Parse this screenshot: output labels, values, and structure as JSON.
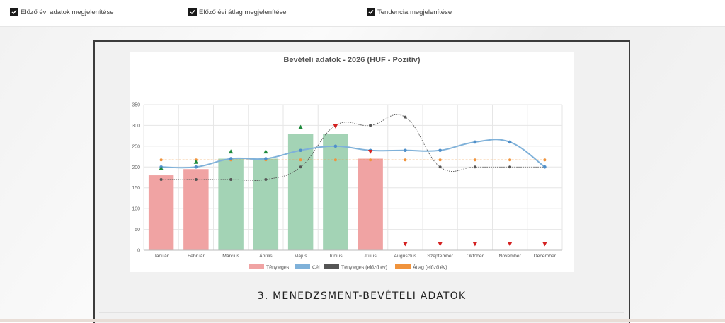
{
  "toggles": [
    {
      "label": "Előző évi adatok megjelenítése",
      "checked": true
    },
    {
      "label": "Előző évi átlag megjelenítése",
      "checked": true
    },
    {
      "label": "Tendencia megjelenítése",
      "checked": true
    }
  ],
  "section_title": "3. MENEDZSMENT-BEVÉTELI ADATOK",
  "chart_data": {
    "type": "bar",
    "title": "Bevételi adatok - 2026 (HUF - Pozitív)",
    "categories": [
      "Január",
      "Február",
      "Március",
      "Április",
      "Május",
      "Június",
      "Július",
      "Augusztus",
      "Szeptember",
      "Október",
      "November",
      "December"
    ],
    "ylim": [
      0,
      350
    ],
    "yticks": [
      0,
      50,
      100,
      150,
      200,
      250,
      300,
      350
    ],
    "grid": true,
    "legend_position": "bottom",
    "series": [
      {
        "name": "Tényleges",
        "type": "bar",
        "values": [
          180,
          195,
          220,
          220,
          280,
          280,
          220,
          null,
          null,
          null,
          null,
          null
        ],
        "status": [
          "below",
          "below",
          "above",
          "above",
          "above",
          "above",
          "below",
          null,
          null,
          null,
          null,
          null
        ]
      },
      {
        "name": "Cél",
        "type": "line",
        "values": [
          200,
          200,
          220,
          220,
          240,
          250,
          240,
          240,
          240,
          260,
          260,
          200
        ]
      },
      {
        "name": "Tényleges (előző év)",
        "type": "line",
        "values": [
          170,
          170,
          170,
          170,
          200,
          300,
          300,
          320,
          200,
          200,
          200,
          200
        ]
      },
      {
        "name": "Átlag (előző év)",
        "type": "line",
        "values": [
          217,
          217,
          217,
          217,
          217,
          217,
          217,
          217,
          217,
          217,
          217,
          217
        ]
      }
    ],
    "trend_markers": [
      {
        "direction": "up",
        "value": 197
      },
      {
        "direction": "up",
        "value": 212
      },
      {
        "direction": "up",
        "value": 237
      },
      {
        "direction": "up",
        "value": 237
      },
      {
        "direction": "up",
        "value": 296
      },
      {
        "direction": "down",
        "value": 298
      },
      {
        "direction": "down",
        "value": 237
      },
      {
        "direction": "down",
        "value": 15
      },
      {
        "direction": "down",
        "value": 15
      },
      {
        "direction": "down",
        "value": 15
      },
      {
        "direction": "down",
        "value": 15
      },
      {
        "direction": "down",
        "value": 15
      }
    ],
    "colors": {
      "bar_below": "#f0a3a3",
      "bar_above": "#a3d3b5",
      "target_line": "#7fb1d9",
      "prev_year_line": "#555555",
      "average_line": "#f0933c",
      "marker_up": "#1e8a3c",
      "marker_down": "#d42121",
      "grid": "#e6e6e6"
    }
  }
}
